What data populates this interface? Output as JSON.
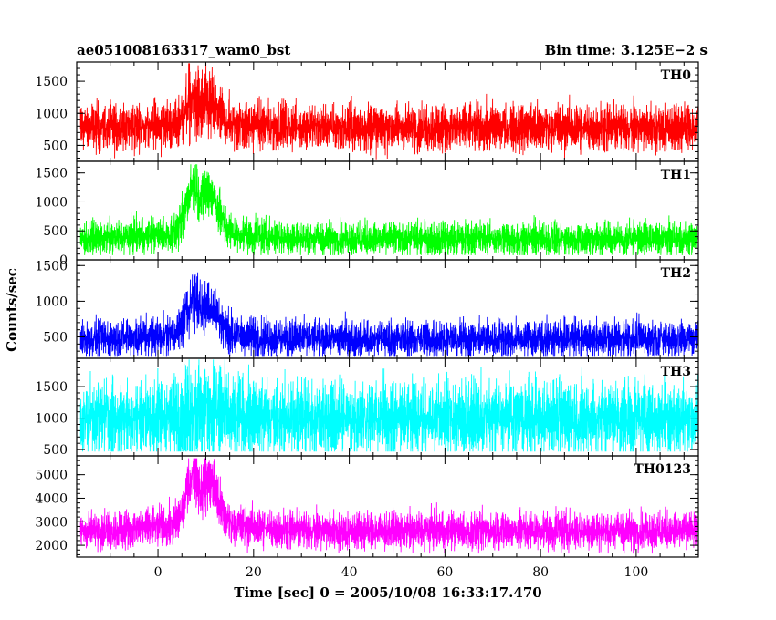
{
  "header": {
    "title": "ae051008163317_wam0_bst",
    "bin_time": "Bin time: 3.125E−2 s"
  },
  "chart_data": {
    "type": "line",
    "xlabel": "Time [sec] 0 = 2005/10/08 16:33:17.470",
    "ylabel": "Counts/sec",
    "xlim": [
      -17,
      113
    ],
    "x_ticks": [
      0,
      20,
      40,
      60,
      80,
      100
    ],
    "x_tick_labels": [
      "0",
      "20",
      "40",
      "60",
      "80",
      "100"
    ],
    "bin_time_s": 0.03125,
    "x_start": -16.2,
    "x_end": 112.8,
    "burst_peaks_s": [
      7.5,
      10.5
    ],
    "panels": [
      {
        "name": "TH0",
        "color": "#ff0000",
        "ylim": [
          250,
          1800
        ],
        "yticks": [
          500,
          1000,
          1500
        ],
        "ytick_labels": [
          "500",
          "1000",
          "1500"
        ],
        "baseline": 780,
        "noise": 150,
        "burst_amp": 380,
        "min_value": 270,
        "max_value": 1780
      },
      {
        "name": "TH1",
        "color": "#00ff00",
        "ylim": [
          0,
          1700
        ],
        "yticks": [
          0,
          500,
          1000,
          1500
        ],
        "ytick_labels": [
          "0",
          "500",
          "1000",
          "1500"
        ],
        "baseline": 360,
        "noise": 120,
        "burst_amp": 850,
        "min_value": 80,
        "max_value": 1650
      },
      {
        "name": "TH2",
        "color": "#0000ff",
        "ylim": [
          200,
          1580
        ],
        "yticks": [
          500,
          1000,
          1500
        ],
        "ytick_labels": [
          "500",
          "1000",
          "1500"
        ],
        "baseline": 470,
        "noise": 110,
        "burst_amp": 520,
        "min_value": 220,
        "max_value": 1560
      },
      {
        "name": "TH3",
        "color": "#00ffff",
        "ylim": [
          400,
          1950
        ],
        "yticks": [
          500,
          1000,
          1500
        ],
        "ytick_labels": [
          "500",
          "1000",
          "1500"
        ],
        "baseline": 1000,
        "noise": 250,
        "burst_amp": 150,
        "min_value": 470,
        "max_value": 1930
      },
      {
        "name": "TH0123",
        "color": "#ff00ff",
        "ylim": [
          1500,
          5800
        ],
        "yticks": [
          2000,
          3000,
          4000,
          5000
        ],
        "ytick_labels": [
          "2000",
          "3000",
          "4000",
          "5000"
        ],
        "baseline": 2620,
        "noise": 330,
        "burst_amp": 2200,
        "min_value": 1650,
        "max_value": 5700
      }
    ]
  }
}
